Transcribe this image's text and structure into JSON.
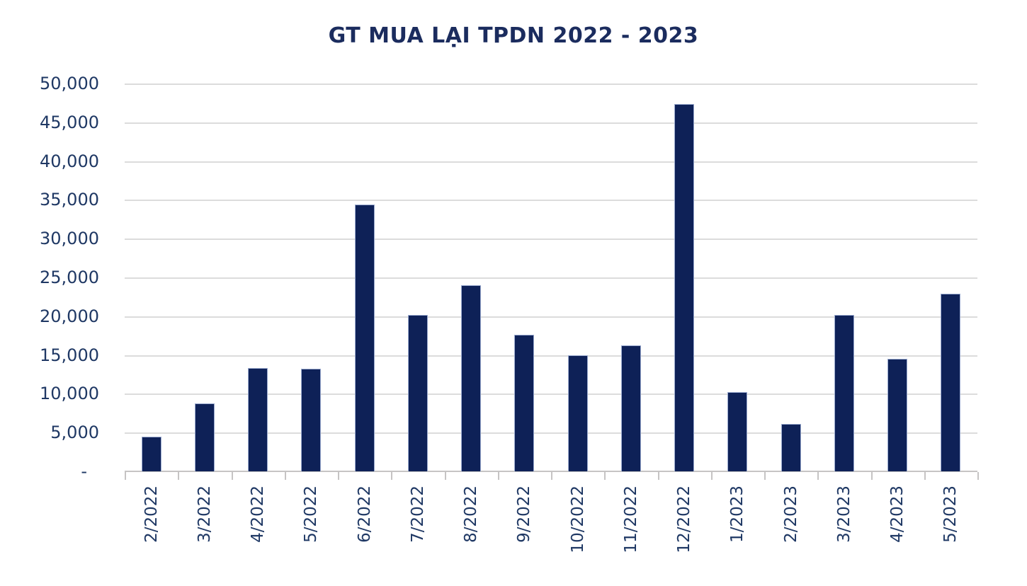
{
  "chart_data": {
    "type": "bar",
    "title": "GT MUA LẠI TPDN 2022 - 2023",
    "categories": [
      "2/2022",
      "3/2022",
      "4/2022",
      "5/2022",
      "6/2022",
      "7/2022",
      "8/2022",
      "9/2022",
      "10/2022",
      "11/2022",
      "12/2022",
      "1/2023",
      "2/2023",
      "3/2023",
      "4/2023",
      "5/2023"
    ],
    "values": [
      4450,
      8750,
      13300,
      13200,
      34400,
      20200,
      24000,
      17600,
      14950,
      16200,
      47350,
      10250,
      6100,
      20200,
      14500,
      22900
    ],
    "xlabel": "",
    "ylabel": "",
    "ylim": [
      0,
      50000
    ],
    "ytick_step": 5000,
    "ytick_labels_ascending": [
      "-",
      "5,000",
      "10,000",
      "15,000",
      "20,000",
      "25,000",
      "30,000",
      "35,000",
      "40,000",
      "45,000",
      "50,000"
    ],
    "grid": true,
    "legend": false,
    "x_labels_rotated_degrees": 90
  },
  "colors": {
    "bar_fill": "#0e2157",
    "bar_edge": "#aab9dd",
    "gridline": "#dcdcdc",
    "axis_line": "#c6c4c4",
    "axis_text": "#1f3864",
    "title_text": "#1b2c5e",
    "background": "#ffffff"
  }
}
